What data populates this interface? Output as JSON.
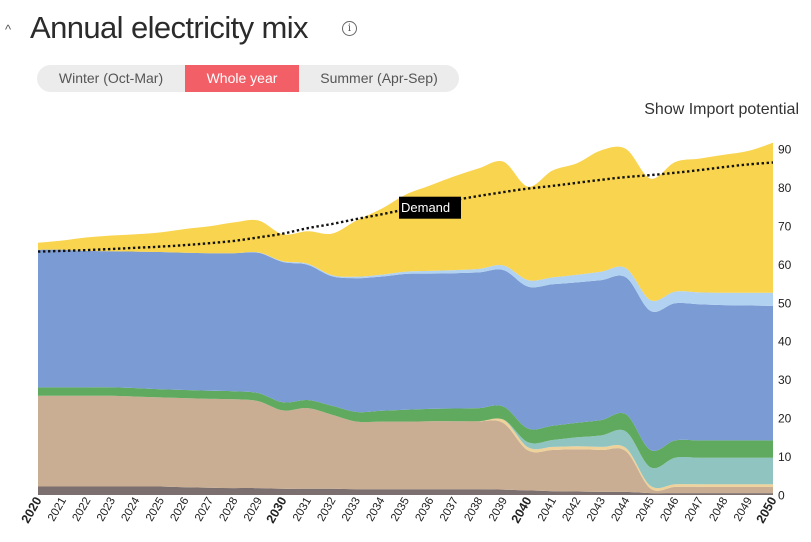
{
  "header": {
    "title": "Annual electricity mix",
    "caret_icon": "chevron-up-icon",
    "info_icon": "info-icon",
    "info_glyph": "i"
  },
  "season_toggle": {
    "options": [
      "Winter (Oct-Mar)",
      "Whole year",
      "Summer (Apr-Sep)"
    ],
    "selected": "Whole year",
    "active_color": "#f25f66"
  },
  "import_link": "Show Import potential",
  "chart_data": {
    "type": "area",
    "stacked": true,
    "x": [
      2020,
      2021,
      2022,
      2023,
      2024,
      2025,
      2026,
      2027,
      2028,
      2029,
      2030,
      2031,
      2032,
      2033,
      2034,
      2035,
      2036,
      2037,
      2038,
      2039,
      2040,
      2041,
      2042,
      2043,
      2044,
      2045,
      2046,
      2047,
      2048,
      2049,
      2050
    ],
    "bold_ticks": [
      2020,
      2030,
      2040,
      2050
    ],
    "ylim": [
      0,
      90
    ],
    "yticks": [
      0,
      10,
      20,
      30,
      40,
      50,
      60,
      70,
      80,
      90
    ],
    "y_axis_position": "right",
    "series": [
      {
        "color": "#7b6f6f",
        "values": [
          2.2,
          2.2,
          2.2,
          2.2,
          2.2,
          2.2,
          2.0,
          1.9,
          1.8,
          1.8,
          1.6,
          1.6,
          1.6,
          1.5,
          1.5,
          1.5,
          1.5,
          1.5,
          1.5,
          1.4,
          1.2,
          1.0,
          0.9,
          0.8,
          0.8,
          0.5,
          0.5,
          0.5,
          0.5,
          0.5,
          0.5
        ]
      },
      {
        "color": "#c9ae93",
        "values": [
          23.6,
          23.6,
          23.6,
          23.6,
          23.4,
          23.2,
          23.2,
          23.1,
          23.1,
          22.6,
          20.4,
          21.0,
          19.3,
          17.6,
          17.6,
          17.6,
          17.7,
          17.7,
          17.7,
          17.3,
          10.4,
          10.7,
          11.0,
          10.9,
          10.6,
          1.2,
          1.6,
          1.6,
          1.6,
          1.6,
          1.6
        ]
      },
      {
        "color": "#efd19a",
        "values": [
          0,
          0,
          0,
          0,
          0,
          0,
          0,
          0,
          0,
          0,
          0,
          0,
          0,
          0,
          0,
          0,
          0,
          0,
          0,
          0.9,
          0.8,
          0.8,
          0.8,
          0.8,
          0.8,
          0.7,
          0.7,
          0.7,
          0.7,
          0.7,
          0.7
        ]
      },
      {
        "color": "#8fc4c0",
        "values": [
          0,
          0,
          0,
          0,
          0,
          0,
          0,
          0,
          0,
          0,
          0,
          0,
          0,
          0,
          0,
          0,
          0,
          0,
          0,
          0,
          1.3,
          1.8,
          2.3,
          3.0,
          4.3,
          4.8,
          6.9,
          6.9,
          6.9,
          6.9,
          6.9
        ]
      },
      {
        "color": "#5faa5f",
        "values": [
          2.2,
          2.2,
          2.2,
          2.2,
          2.2,
          2.1,
          2.1,
          2.1,
          2.1,
          2.1,
          2.1,
          2.1,
          2.3,
          2.5,
          2.8,
          3.1,
          3.2,
          3.3,
          3.4,
          3.4,
          3.6,
          3.7,
          3.8,
          4.0,
          4.5,
          4.5,
          4.5,
          4.5,
          4.5,
          4.5,
          4.5
        ]
      },
      {
        "color": "#7b9bd4",
        "values": [
          35.8,
          35.8,
          35.5,
          35.4,
          35.5,
          35.7,
          35.7,
          35.8,
          35.9,
          36.5,
          36.5,
          35.2,
          33.7,
          34.8,
          34.9,
          35.3,
          35.2,
          35.2,
          35.3,
          35.5,
          36.9,
          36.8,
          36.5,
          36.4,
          35.6,
          36.2,
          35.7,
          35.4,
          35.2,
          35.1,
          35.0
        ]
      },
      {
        "color": "#b2d2f2",
        "values": [
          0,
          0,
          0,
          0,
          0,
          0,
          0,
          0,
          0,
          0.1,
          0.2,
          0.3,
          0.3,
          0.4,
          0.5,
          0.6,
          0.7,
          0.8,
          0.9,
          1.2,
          1.7,
          1.8,
          2.0,
          2.2,
          2.4,
          2.8,
          3.0,
          3.1,
          3.2,
          3.3,
          3.4
        ]
      },
      {
        "color": "#f9d44f",
        "values": [
          1.8,
          2.4,
          3.5,
          4.1,
          4.5,
          5.1,
          6.2,
          7.0,
          8.0,
          8.3,
          7.0,
          8.4,
          10.8,
          14.6,
          17.1,
          20.0,
          22.2,
          24.4,
          26.2,
          27.0,
          24.3,
          27.8,
          29.0,
          31.6,
          31.0,
          31.6,
          33.7,
          34.8,
          35.9,
          36.9,
          39.0
        ]
      }
    ],
    "demand": {
      "label": "Demand",
      "label_at_x": 2036,
      "color": "#111111",
      "values": [
        63.3,
        63.5,
        63.7,
        64.0,
        64.3,
        64.6,
        65.0,
        65.5,
        66.1,
        67.0,
        68.0,
        69.4,
        70.5,
        71.8,
        73.0,
        74.3,
        75.5,
        76.7,
        77.8,
        78.8,
        79.7,
        80.4,
        81.2,
        82.0,
        82.7,
        83.2,
        83.8,
        84.5,
        85.3,
        86.0,
        86.5
      ]
    }
  }
}
